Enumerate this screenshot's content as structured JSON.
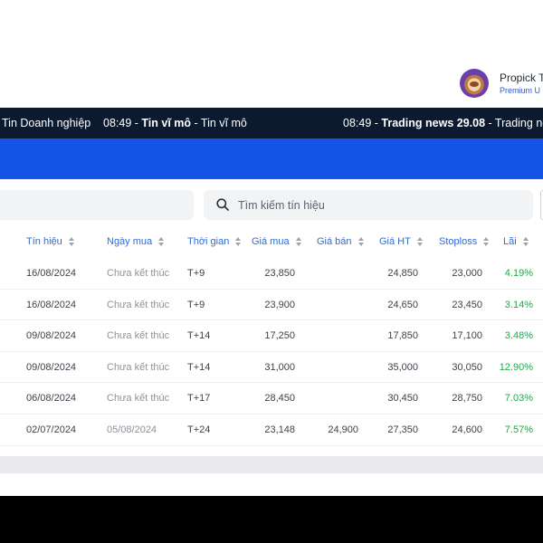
{
  "profile": {
    "name": "Propick T",
    "plan": "Premium U"
  },
  "ticker": [
    {
      "time": "",
      "title": "",
      "category": "Tin Doanh nghiệp"
    },
    {
      "time": "08:49",
      "title": "Tin vĩ mô",
      "category": "Tin vĩ mô"
    },
    {
      "time": "08:49",
      "title": "Trading news 29.08",
      "category": "Trading ne"
    }
  ],
  "search": {
    "placeholder": "Tìm kiếm tín hiệu"
  },
  "table": {
    "columns": [
      "Tín hiệu",
      "Ngày mua",
      "Thời gian",
      "Giá mua",
      "Giá bán",
      "Giá HT",
      "Stoploss",
      "Lãi"
    ],
    "rows": [
      {
        "signal": "16/08/2024",
        "buy_date": "Chưa kết thúc",
        "duration": "T+9",
        "buy_price": "23,850",
        "sell_price": "",
        "current_price": "24,850",
        "stoploss": "23,000",
        "profit": "4.19%"
      },
      {
        "signal": "16/08/2024",
        "buy_date": "Chưa kết thúc",
        "duration": "T+9",
        "buy_price": "23,900",
        "sell_price": "",
        "current_price": "24,650",
        "stoploss": "23,450",
        "profit": "3.14%"
      },
      {
        "signal": "09/08/2024",
        "buy_date": "Chưa kết thúc",
        "duration": "T+14",
        "buy_price": "17,250",
        "sell_price": "",
        "current_price": "17,850",
        "stoploss": "17,100",
        "profit": "3.48%"
      },
      {
        "signal": "09/08/2024",
        "buy_date": "Chưa kết thúc",
        "duration": "T+14",
        "buy_price": "31,000",
        "sell_price": "",
        "current_price": "35,000",
        "stoploss": "30,050",
        "profit": "12.90%"
      },
      {
        "signal": "06/08/2024",
        "buy_date": "Chưa kết thúc",
        "duration": "T+17",
        "buy_price": "28,450",
        "sell_price": "",
        "current_price": "30,450",
        "stoploss": "28,750",
        "profit": "7.03%"
      },
      {
        "signal": "02/07/2024",
        "buy_date": "05/08/2024",
        "duration": "T+24",
        "buy_price": "23,148",
        "sell_price": "24,900",
        "current_price": "27,350",
        "stoploss": "24,600",
        "profit": "7.57%"
      }
    ]
  },
  "colors": {
    "ticker_bg": "#0b1a2e",
    "brand_blue": "#1553e6",
    "header_blue": "#2e6cd9",
    "profit_green": "#20a84a"
  }
}
